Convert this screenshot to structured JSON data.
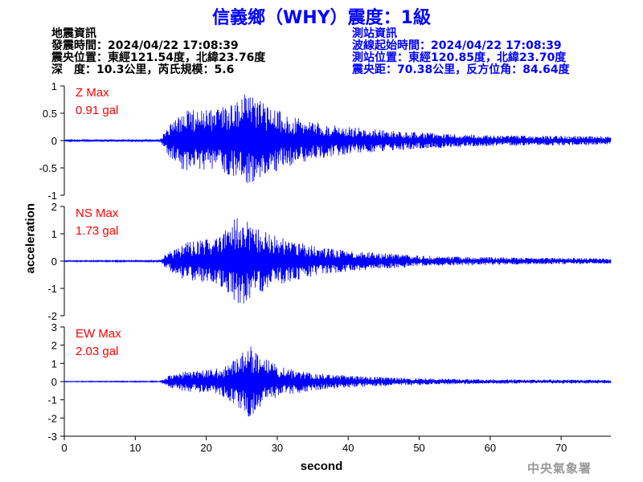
{
  "title": "信義鄉（WHY）震度：1級",
  "quake_info": {
    "heading": "地震資訊",
    "origin_time": "發震時間：2024/04/22 17:08:39",
    "epicenter": "震央位置：東經121.54度，北緯23.76度",
    "depth_magnitude": "深　度：10.3公里，芮氏規模：5.6"
  },
  "station_info": {
    "heading": "測站資訊",
    "wave_start": "波線起始時間：2024/04/22 17:08:39",
    "station_location": "測站位置：東經120.85度，北緯23.70度",
    "distance_azimuth": "震央距：70.38公里，反方位角：84.64度"
  },
  "footer": "中央氣象署",
  "colors": {
    "title": "#0000ff",
    "trace": "#0000ff",
    "max_label": "#ff0000",
    "station_info": "#0000ff",
    "footer": "#9a9a9a"
  },
  "chart_data": {
    "type": "line",
    "xlabel": "second",
    "ylabel": "acceleration",
    "xlim": [
      0,
      77
    ],
    "xticks": [
      0,
      10,
      20,
      30,
      40,
      50,
      60,
      70
    ],
    "grid": false,
    "panels": [
      {
        "component": "Z",
        "max_label": "Z Max",
        "max_value": "0.91 gal",
        "peak": 0.91,
        "ylim": [
          -1,
          1
        ],
        "yticks": [
          -1,
          -0.5,
          0,
          0.5,
          1
        ],
        "ytick_labels": [
          "-1",
          "-0.5",
          "0",
          "0.5",
          "1"
        ],
        "envelope": [
          [
            0,
            0.015
          ],
          [
            13.5,
            0.02
          ],
          [
            14.5,
            0.25
          ],
          [
            17,
            0.6
          ],
          [
            19,
            0.55
          ],
          [
            22,
            0.6
          ],
          [
            24,
            0.7
          ],
          [
            26,
            0.91
          ],
          [
            28,
            0.7
          ],
          [
            31,
            0.5
          ],
          [
            35,
            0.35
          ],
          [
            40,
            0.25
          ],
          [
            50,
            0.15
          ],
          [
            60,
            0.1
          ],
          [
            77,
            0.08
          ]
        ]
      },
      {
        "component": "NS",
        "max_label": "NS Max",
        "max_value": "1.73 gal",
        "peak": 1.73,
        "ylim": [
          -2,
          2
        ],
        "yticks": [
          -2,
          -1,
          0,
          1,
          2
        ],
        "ytick_labels": [
          "-2",
          "-1",
          "0",
          "1",
          "2"
        ],
        "envelope": [
          [
            0,
            0.02
          ],
          [
            13.5,
            0.03
          ],
          [
            14.5,
            0.3
          ],
          [
            17,
            0.7
          ],
          [
            19,
            0.75
          ],
          [
            22,
            0.9
          ],
          [
            24.5,
            1.73
          ],
          [
            26.5,
            1.3
          ],
          [
            29,
            1.0
          ],
          [
            32,
            0.75
          ],
          [
            36,
            0.5
          ],
          [
            42,
            0.35
          ],
          [
            50,
            0.2
          ],
          [
            60,
            0.14
          ],
          [
            77,
            0.1
          ]
        ]
      },
      {
        "component": "EW",
        "max_label": "EW Max",
        "max_value": "2.03 gal",
        "peak": 2.03,
        "ylim": [
          -3,
          3
        ],
        "yticks": [
          -3,
          -2,
          -1,
          0,
          1,
          2,
          3
        ],
        "ytick_labels": [
          "-3",
          "-2",
          "-1",
          "0",
          "1",
          "2",
          "3"
        ],
        "envelope": [
          [
            0,
            0.02
          ],
          [
            13.5,
            0.03
          ],
          [
            14.5,
            0.3
          ],
          [
            17,
            0.55
          ],
          [
            19,
            0.6
          ],
          [
            22,
            0.75
          ],
          [
            24.5,
            1.4
          ],
          [
            26,
            2.03
          ],
          [
            28,
            1.3
          ],
          [
            31,
            0.75
          ],
          [
            36,
            0.45
          ],
          [
            42,
            0.3
          ],
          [
            50,
            0.18
          ],
          [
            60,
            0.12
          ],
          [
            77,
            0.1
          ]
        ]
      }
    ]
  }
}
